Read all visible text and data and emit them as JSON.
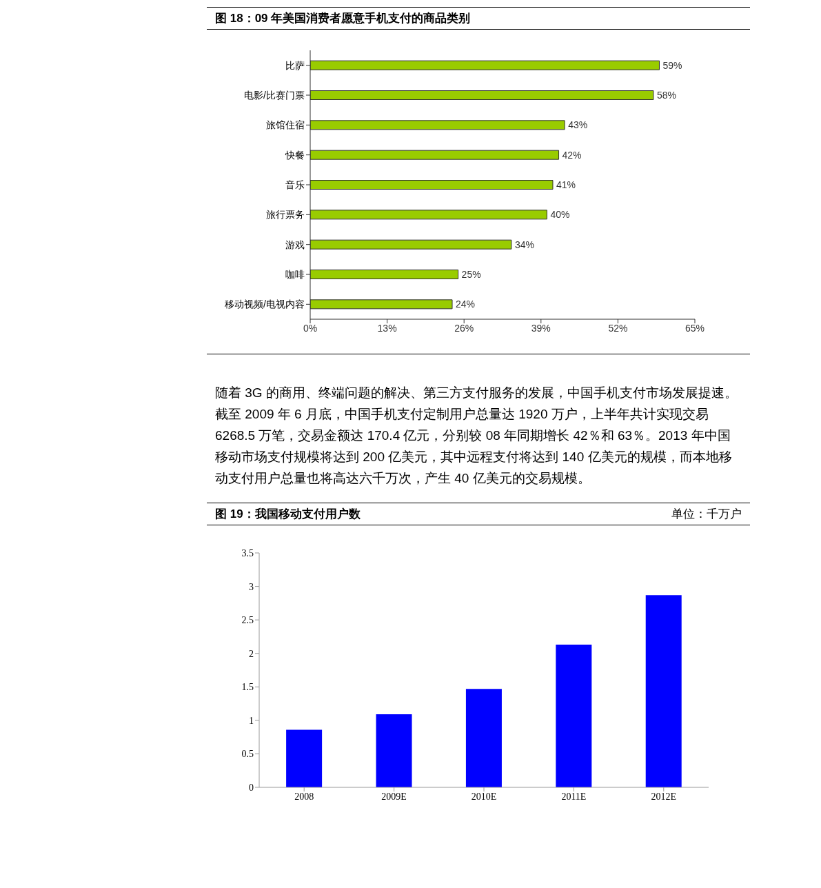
{
  "chart_data": [
    {
      "type": "bar",
      "orientation": "horizontal",
      "title": "图 18：09 年美国消费者愿意手机支付的商品类别",
      "categories": [
        "比萨",
        "电影/比赛门票",
        "旅馆住宿",
        "快餐",
        "音乐",
        "旅行票务",
        "游戏",
        "咖啡",
        "移动视频/电视内容"
      ],
      "values": [
        59,
        58,
        43,
        42,
        41,
        40,
        34,
        25,
        24
      ],
      "value_labels": [
        "59%",
        "58%",
        "43%",
        "42%",
        "41%",
        "40%",
        "34%",
        "25%",
        "24%"
      ],
      "color": "#99cc00",
      "xlim": [
        0,
        65
      ],
      "xticks": [
        {
          "value": 0,
          "label": "0%"
        },
        {
          "value": 13,
          "label": "13%"
        },
        {
          "value": 26,
          "label": "26%"
        },
        {
          "value": 39,
          "label": "39%"
        },
        {
          "value": 52,
          "label": "52%"
        },
        {
          "value": 65,
          "label": "65%"
        }
      ]
    },
    {
      "type": "other",
      "annotations": [
        "随着 3G 的商用、终端问题的解决、第三方支付服务的发展，中国手机支付市场发展提速。截至 2009 年 6 月底，中国手机支付定制用户总量达 1920 万户，上半年共计实现交易 6268.5 万笔，交易金额达 170.4 亿元，分别较 08 年同期增长 42％和 63％。2013 年中国移动市场支付规模将达到 200 亿美元，其中远程支付将达到 140 亿美元的规模，而本地移动支付用户总量也将高达六千万次，产生 40 亿美元的交易规模。"
      ]
    },
    {
      "type": "bar",
      "title": "图 19：我国移动支付用户数",
      "subtitle": "单位：千万户",
      "categories": [
        "2008",
        "2009E",
        "2010E",
        "2011E",
        "2012E"
      ],
      "values": [
        0.86,
        1.09,
        1.47,
        2.13,
        2.87
      ],
      "color": "#0000ff",
      "ylim": [
        0,
        3.5
      ],
      "yticks": [
        0,
        0.5,
        1,
        1.5,
        2,
        2.5,
        3,
        3.5
      ]
    }
  ]
}
